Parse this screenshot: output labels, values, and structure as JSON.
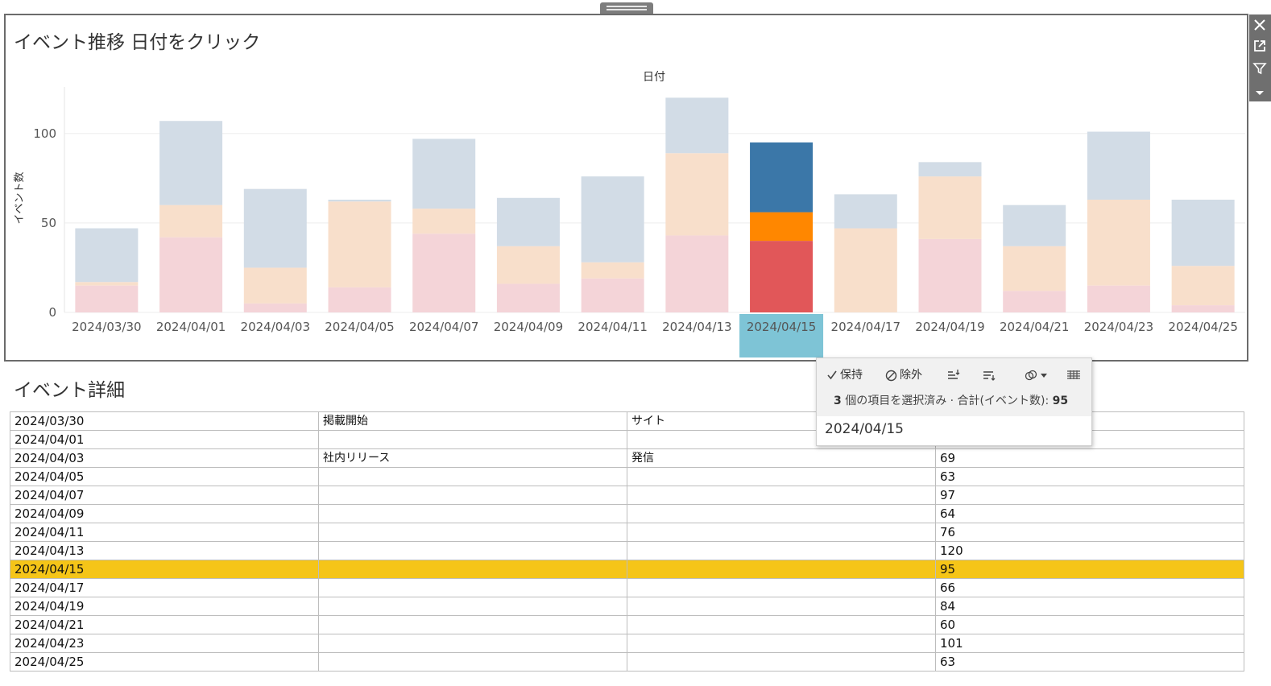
{
  "chart": {
    "title": "イベント推移 日付をクリック",
    "column_header": "日付",
    "y_axis_label": "イベント数",
    "selected_label_color": "#7ec4d6"
  },
  "chart_data": {
    "type": "bar",
    "stacked": true,
    "categories": [
      "2024/03/30",
      "2024/04/01",
      "2024/04/03",
      "2024/04/05",
      "2024/04/07",
      "2024/04/09",
      "2024/04/11",
      "2024/04/13",
      "2024/04/15",
      "2024/04/17",
      "2024/04/19",
      "2024/04/21",
      "2024/04/23",
      "2024/04/25"
    ],
    "series": [
      {
        "values": [
          15,
          42,
          5,
          14,
          44,
          16,
          19,
          43,
          40,
          0,
          41,
          12,
          15,
          4
        ],
        "color": "#e15759",
        "faded_color": "#f4d4d8"
      },
      {
        "values": [
          2,
          18,
          20,
          48,
          14,
          21,
          9,
          46,
          16,
          47,
          35,
          25,
          48,
          22
        ],
        "color": "#ff8700",
        "faded_color": "#f8dfcb"
      },
      {
        "values": [
          30,
          47,
          44,
          1,
          39,
          27,
          48,
          31,
          39,
          19,
          8,
          23,
          38,
          37
        ],
        "color": "#3b77a8",
        "faded_color": "#d2dce6"
      }
    ],
    "totals": [
      47,
      107,
      69,
      63,
      97,
      64,
      76,
      120,
      95,
      66,
      84,
      60,
      101,
      63
    ],
    "selected_index": 8,
    "yticks": [
      0,
      50,
      100
    ],
    "ylim": [
      0,
      126
    ],
    "grid": true
  },
  "detail": {
    "title": "イベント詳細",
    "rows": [
      {
        "date": "2024/03/30",
        "event": "掲載開始",
        "type": "サイト",
        "count": ""
      },
      {
        "date": "2024/04/01",
        "event": "",
        "type": "",
        "count": ""
      },
      {
        "date": "2024/04/03",
        "event": "社内リリース",
        "type": "発信",
        "count": "69"
      },
      {
        "date": "2024/04/05",
        "event": "",
        "type": "",
        "count": "63"
      },
      {
        "date": "2024/04/07",
        "event": "",
        "type": "",
        "count": "97"
      },
      {
        "date": "2024/04/09",
        "event": "",
        "type": "",
        "count": "64"
      },
      {
        "date": "2024/04/11",
        "event": "",
        "type": "",
        "count": "76"
      },
      {
        "date": "2024/04/13",
        "event": "",
        "type": "",
        "count": "120"
      },
      {
        "date": "2024/04/15",
        "event": "",
        "type": "",
        "count": "95"
      },
      {
        "date": "2024/04/17",
        "event": "",
        "type": "",
        "count": "66"
      },
      {
        "date": "2024/04/19",
        "event": "",
        "type": "",
        "count": "84"
      },
      {
        "date": "2024/04/21",
        "event": "",
        "type": "",
        "count": "60"
      },
      {
        "date": "2024/04/23",
        "event": "",
        "type": "",
        "count": "101"
      },
      {
        "date": "2024/04/25",
        "event": "",
        "type": "",
        "count": "63"
      }
    ],
    "highlight_index": 8,
    "highlight_color": "#f5c518"
  },
  "tooltip": {
    "keep_label": "保持",
    "exclude_label": "除外",
    "summary_count": "3",
    "summary_text": " 個の項目を選択済み · 合計(イベント数): ",
    "summary_total": "95",
    "date": "2024/04/15"
  },
  "toolbar": {
    "icons": [
      "close-icon",
      "popout-icon",
      "filter-icon",
      "more-options-icon"
    ]
  }
}
